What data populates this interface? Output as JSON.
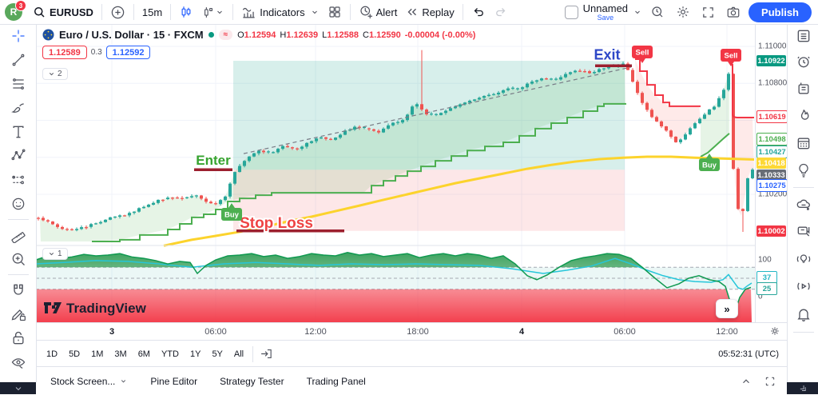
{
  "colors": {
    "up": "#26a69a",
    "down": "#ef5350",
    "blue": "#2962ff",
    "sell": "#f23645",
    "buy": "#4caf50",
    "ma_yellow": "#fcd32c",
    "st_up": "#4caf50",
    "st_down": "#f23645",
    "grid": "#f0f3fa"
  },
  "topbar": {
    "avatar": "R",
    "badge": "3",
    "symbol": "EURUSD",
    "interval": "15m",
    "indicators": "Indicators",
    "alert": "Alert",
    "replay": "Replay",
    "layout_name": "Unnamed",
    "save": "Save",
    "publish": "Publish"
  },
  "chart_header": {
    "title": "Euro / U.S. Dollar · 15 · FXCM",
    "o_label": "O",
    "o": "1.12594",
    "h_label": "H",
    "h": "1.12639",
    "l_label": "L",
    "l": "1.12588",
    "c_label": "C",
    "c": "1.12590",
    "change": "-0.00004 (-0.00%)",
    "bid": "1.12589",
    "spread": "0.3",
    "ask": "1.12592",
    "pane_collapse": "2"
  },
  "indicator_pane": {
    "collapse": "1",
    "expand_button": "»"
  },
  "watermark": "TradingView",
  "range_toolbar": {
    "items": [
      "1D",
      "5D",
      "1M",
      "3M",
      "6M",
      "YTD",
      "1Y",
      "5Y",
      "All"
    ],
    "clock": "05:52:31 (UTC)"
  },
  "tabs": [
    "Stock Screen...",
    "Pine Editor",
    "Strategy Tester",
    "Trading Panel"
  ],
  "chart_data": {
    "type": "candlestick",
    "title": "Euro / U.S. Dollar · 15 · FXCM",
    "ylim": [
      1.09923,
      1.11121
    ],
    "scale": {
      "p1": 1.11,
      "y1": 58,
      "p2": 1.102,
      "y2": 243
    },
    "grid": {
      "h_prices": [
        1.11,
        1.108,
        1.106,
        1.104,
        1.102
      ],
      "v_x": [
        140,
        270,
        395,
        523,
        653,
        782,
        910
      ]
    },
    "time_axis": [
      {
        "x": 140,
        "label": "3",
        "day": true
      },
      {
        "x": 270,
        "label": "06:00"
      },
      {
        "x": 395,
        "label": "12:00"
      },
      {
        "x": 523,
        "label": "18:00"
      },
      {
        "x": 653,
        "label": "4",
        "day": true
      },
      {
        "x": 782,
        "label": "06:00"
      },
      {
        "x": 910,
        "label": "12:00"
      }
    ],
    "price_axis": {
      "plain": [
        {
          "label": "1.11000",
          "y": 58
        },
        {
          "label": "1.10800",
          "y": 104
        },
        {
          "label": "1.10200",
          "y": 243
        }
      ],
      "badges": [
        {
          "label": "1.10922",
          "y": 76,
          "style": "fill",
          "bg": "#089981",
          "fg": "#ffffff"
        },
        {
          "label": "1.10619",
          "y": 146,
          "style": "outline",
          "fg": "#f23645"
        },
        {
          "label": "1.10498",
          "y": 174,
          "style": "outline",
          "fg": "#4caf50"
        },
        {
          "label": "1.10427",
          "y": 190,
          "style": "outline",
          "fg": "#26a69a"
        },
        {
          "label": "1.10418",
          "y": 204,
          "style": "fill",
          "bg": "#fdd835",
          "fg": "#ffffff"
        },
        {
          "label": "1.10333",
          "y": 219,
          "style": "fill",
          "bg": "#686d76",
          "fg": "#ffffff"
        },
        {
          "label": "1.10275",
          "y": 232,
          "style": "outline",
          "fg": "#2962ff"
        },
        {
          "label": "1.10002",
          "y": 289,
          "style": "fill",
          "bg": "#f23645",
          "fg": "#ffffff"
        }
      ]
    },
    "position_tool": {
      "entry": 1.10333,
      "target": 1.10922,
      "stop": 1.10002,
      "x1": 292,
      "x2": 782,
      "enter_label": "Enter",
      "exit_label": "Exit",
      "stop_label": "Stop Loss",
      "enter_seg": {
        "x1": 243,
        "x2": 291,
        "p": 1.10333
      },
      "exit_seg": {
        "x1": 745,
        "x2": 791,
        "p": 1.10895
      },
      "stop_seg": {
        "x1": 296,
        "x2": 431,
        "p": 1.10002
      }
    },
    "markers": [
      {
        "type": "buy",
        "label": "Buy",
        "x": 290,
        "y": 268
      },
      {
        "type": "sell",
        "label": "Sell",
        "x": 804,
        "y": 65
      },
      {
        "type": "buy",
        "label": "Buy",
        "x": 888,
        "y": 206
      },
      {
        "type": "sell",
        "label": "Sell",
        "x": 915,
        "y": 69
      }
    ],
    "candles": {
      "first_x": 48,
      "spacing": 6,
      "count": 150,
      "close_anchors": [
        [
          48,
          1.10075
        ],
        [
          60,
          1.10049
        ],
        [
          75,
          1.10018
        ],
        [
          90,
          1.10005
        ],
        [
          105,
          1.10023
        ],
        [
          120,
          1.10044
        ],
        [
          140,
          1.10075
        ],
        [
          160,
          1.10092
        ],
        [
          180,
          1.10135
        ],
        [
          200,
          1.1017
        ],
        [
          215,
          1.10187
        ],
        [
          230,
          1.10178
        ],
        [
          245,
          1.102
        ],
        [
          258,
          1.10161
        ],
        [
          270,
          1.10148
        ],
        [
          282,
          1.10187
        ],
        [
          295,
          1.10334
        ],
        [
          310,
          1.10403
        ],
        [
          325,
          1.10438
        ],
        [
          340,
          1.1042
        ],
        [
          355,
          1.10464
        ],
        [
          370,
          1.10438
        ],
        [
          385,
          1.10481
        ],
        [
          400,
          1.10507
        ],
        [
          415,
          1.1049
        ],
        [
          430,
          1.10537
        ],
        [
          445,
          1.10568
        ],
        [
          460,
          1.1055
        ],
        [
          475,
          1.10537
        ],
        [
          490,
          1.10581
        ],
        [
          505,
          1.10602
        ],
        [
          520,
          1.10697
        ],
        [
          533,
          1.10637
        ],
        [
          545,
          1.10624
        ],
        [
          560,
          1.10654
        ],
        [
          575,
          1.10689
        ],
        [
          590,
          1.10706
        ],
        [
          605,
          1.10732
        ],
        [
          620,
          1.10741
        ],
        [
          635,
          1.10775
        ],
        [
          650,
          1.10767
        ],
        [
          665,
          1.1081
        ],
        [
          680,
          1.10827
        ],
        [
          695,
          1.10819
        ],
        [
          710,
          1.10853
        ],
        [
          725,
          1.1087
        ],
        [
          740,
          1.10853
        ],
        [
          755,
          1.10883
        ],
        [
          770,
          1.10896
        ],
        [
          783,
          1.10905
        ],
        [
          795,
          1.10775
        ],
        [
          805,
          1.10689
        ],
        [
          815,
          1.10624
        ],
        [
          825,
          1.10581
        ],
        [
          835,
          1.10537
        ],
        [
          845,
          1.10481
        ],
        [
          855,
          1.10507
        ],
        [
          865,
          1.10559
        ],
        [
          875,
          1.10602
        ],
        [
          885,
          1.10645
        ],
        [
          895,
          1.1068
        ],
        [
          905,
          1.10753
        ],
        [
          911,
          1.1084
        ],
        [
          914,
          1.1087
        ],
        [
          918,
          1.10334
        ],
        [
          924,
          1.10118
        ],
        [
          929,
          1.10075
        ],
        [
          933,
          1.10213
        ],
        [
          938,
          1.10333
        ],
        [
          941,
          1.10333
        ]
      ],
      "special_wicks": [
        {
          "x": 527,
          "high": 1.1098
        },
        {
          "x": 929,
          "low": 1.09997
        }
      ]
    },
    "supertrend": {
      "up1": [
        [
          115,
          1.09945
        ],
        [
          150,
          1.09954
        ],
        [
          175,
          1.0998
        ],
        [
          210,
          1.1001
        ],
        [
          225,
          1.1004
        ],
        [
          240,
          1.10075
        ],
        [
          255,
          1.10092
        ],
        [
          270,
          1.10118
        ],
        [
          285,
          1.10161
        ],
        [
          300,
          1.10178
        ],
        [
          320,
          1.10195
        ],
        [
          340,
          1.10208
        ],
        [
          455,
          1.10208
        ],
        [
          465,
          1.10247
        ],
        [
          480,
          1.10273
        ],
        [
          495,
          1.10299
        ],
        [
          510,
          1.10325
        ],
        [
          527,
          1.10351
        ],
        [
          545,
          1.10381
        ],
        [
          565,
          1.10407
        ],
        [
          585,
          1.10437
        ],
        [
          607,
          1.10459
        ],
        [
          630,
          1.10481
        ],
        [
          650,
          1.10516
        ],
        [
          670,
          1.10555
        ],
        [
          690,
          1.10585
        ],
        [
          710,
          1.10615
        ],
        [
          730,
          1.1065
        ],
        [
          748,
          1.10676
        ],
        [
          756,
          1.10689
        ],
        [
          783,
          1.10693
        ]
      ],
      "down1": [
        [
          795,
          1.10931
        ],
        [
          801,
          1.10866
        ],
        [
          810,
          1.10792
        ],
        [
          820,
          1.10736
        ],
        [
          830,
          1.10697
        ],
        [
          838,
          1.10676
        ],
        [
          877,
          1.10676
        ]
      ],
      "up2": [
        [
          877,
          1.10403
        ],
        [
          886,
          1.10425
        ],
        [
          896,
          1.10464
        ],
        [
          906,
          1.10503
        ],
        [
          913,
          1.10529
        ]
      ],
      "down2_level": 1.10615,
      "down2_x": 917,
      "down2_top": 1.10905
    },
    "ma_yellow": [
      [
        205,
        1.09922
      ],
      [
        240,
        1.09954
      ],
      [
        270,
        1.09975
      ],
      [
        300,
        1.09997
      ],
      [
        330,
        1.10023
      ],
      [
        360,
        1.10053
      ],
      [
        390,
        1.10079
      ],
      [
        420,
        1.10109
      ],
      [
        450,
        1.10139
      ],
      [
        480,
        1.1017
      ],
      [
        510,
        1.102
      ],
      [
        540,
        1.1023
      ],
      [
        570,
        1.1026
      ],
      [
        600,
        1.10286
      ],
      [
        630,
        1.10312
      ],
      [
        660,
        1.10338
      ],
      [
        690,
        1.10359
      ],
      [
        720,
        1.10377
      ],
      [
        750,
        1.1039
      ],
      [
        780,
        1.10398
      ],
      [
        810,
        1.10403
      ],
      [
        840,
        1.10403
      ],
      [
        870,
        1.10398
      ],
      [
        900,
        1.10394
      ],
      [
        944,
        1.10388
      ]
    ],
    "trendline_dashed": {
      "x1": 305,
      "p1": 1.1042,
      "x2": 790,
      "p2": 1.10888
    },
    "oscillator": {
      "scale": {
        "v1": 100,
        "y1": 325,
        "v2": 0,
        "y2": 371
      },
      "levels": [
        80,
        50,
        20
      ],
      "labels": {
        "top": "100",
        "bottom": "0"
      },
      "badges": [
        {
          "label": "37",
          "y": 347,
          "color": "#22b6c4"
        },
        {
          "label": "25",
          "y": 361,
          "color": "#26a69a"
        }
      ],
      "line_a": [
        [
          45,
          100
        ],
        [
          60,
          111
        ],
        [
          75,
          104
        ],
        [
          90,
          108
        ],
        [
          105,
          115
        ],
        [
          120,
          111
        ],
        [
          135,
          113
        ],
        [
          150,
          117
        ],
        [
          165,
          108
        ],
        [
          180,
          104
        ],
        [
          195,
          98
        ],
        [
          210,
          89
        ],
        [
          225,
          96
        ],
        [
          238,
          93
        ],
        [
          247,
          63
        ],
        [
          258,
          85
        ],
        [
          270,
          100
        ],
        [
          285,
          111
        ],
        [
          300,
          113
        ],
        [
          315,
          117
        ],
        [
          330,
          109
        ],
        [
          345,
          113
        ],
        [
          360,
          104
        ],
        [
          375,
          109
        ],
        [
          390,
          117
        ],
        [
          405,
          113
        ],
        [
          420,
          111
        ],
        [
          435,
          120
        ],
        [
          450,
          113
        ],
        [
          465,
          117
        ],
        [
          480,
          109
        ],
        [
          495,
          113
        ],
        [
          510,
          117
        ],
        [
          525,
          106
        ],
        [
          540,
          113
        ],
        [
          555,
          117
        ],
        [
          570,
          111
        ],
        [
          585,
          117
        ],
        [
          600,
          113
        ],
        [
          615,
          104
        ],
        [
          630,
          111
        ],
        [
          645,
          89
        ],
        [
          660,
          57
        ],
        [
          672,
          46
        ],
        [
          685,
          59
        ],
        [
          700,
          80
        ],
        [
          715,
          98
        ],
        [
          730,
          106
        ],
        [
          745,
          111
        ],
        [
          760,
          117
        ],
        [
          775,
          115
        ],
        [
          790,
          104
        ],
        [
          805,
          78
        ],
        [
          820,
          50
        ],
        [
          835,
          24
        ],
        [
          850,
          35
        ],
        [
          862,
          50
        ],
        [
          875,
          57
        ],
        [
          888,
          46
        ],
        [
          900,
          41
        ],
        [
          908,
          28
        ],
        [
          915,
          -20
        ],
        [
          919,
          -48
        ],
        [
          926,
          -2
        ],
        [
          933,
          20
        ],
        [
          940,
          25
        ]
      ],
      "line_b": [
        [
          45,
          89
        ],
        [
          80,
          93
        ],
        [
          120,
          98
        ],
        [
          160,
          96
        ],
        [
          200,
          89
        ],
        [
          240,
          80
        ],
        [
          280,
          89
        ],
        [
          320,
          93
        ],
        [
          360,
          89
        ],
        [
          400,
          85
        ],
        [
          440,
          89
        ],
        [
          480,
          87
        ],
        [
          520,
          89
        ],
        [
          560,
          87
        ],
        [
          600,
          85
        ],
        [
          640,
          76
        ],
        [
          680,
          63
        ],
        [
          710,
          72
        ],
        [
          740,
          83
        ],
        [
          770,
          104
        ],
        [
          790,
          89
        ],
        [
          810,
          72
        ],
        [
          830,
          57
        ],
        [
          850,
          46
        ],
        [
          870,
          41
        ],
        [
          890,
          39
        ],
        [
          905,
          46
        ],
        [
          912,
          60
        ],
        [
          918,
          42
        ],
        [
          924,
          24
        ],
        [
          930,
          20
        ],
        [
          936,
          30
        ],
        [
          941,
          37
        ]
      ]
    }
  }
}
